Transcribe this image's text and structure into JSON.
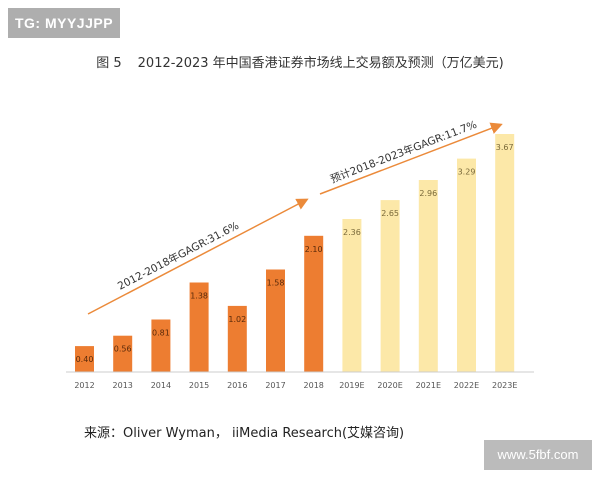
{
  "watermark_top": "TG: MYYJJPP",
  "watermark_bottom": "www.5fbf.com",
  "figure_number": "图 5",
  "title": "2012-2023 年中国香港证券市场线上交易额及预测（万亿美元)",
  "source": "来源：Oliver Wyman， iiMedia Research(艾媒咨询)",
  "colors": {
    "actual": "#ED7D31",
    "forecast": "#FCE8A8",
    "arrow": "#EB8A3A"
  },
  "chart_data": {
    "type": "bar",
    "title": "2012-2023 年中国香港证券市场线上交易额及预测（万亿美元)",
    "xlabel": "",
    "ylabel": "",
    "categories": [
      "2012",
      "2013",
      "2014",
      "2015",
      "2016",
      "2017",
      "2018",
      "2019E",
      "2020E",
      "2021E",
      "2022E",
      "2023E"
    ],
    "values": [
      0.4,
      0.56,
      0.81,
      1.38,
      1.02,
      1.58,
      2.1,
      2.36,
      2.65,
      2.96,
      3.29,
      3.67
    ],
    "labels": [
      "0.40",
      "0.56",
      "0.81",
      "1.38",
      "1.02",
      "1.58",
      "2.10",
      "2.36",
      "2.65",
      "2.96",
      "3.29",
      "3.67"
    ],
    "forecast_from_index": 7,
    "ylim": [
      0,
      3.67
    ],
    "grid": false,
    "annotations": [
      "2012-2018年GAGR:31.6%",
      "预计2018-2023年GAGR:11.7%"
    ]
  }
}
